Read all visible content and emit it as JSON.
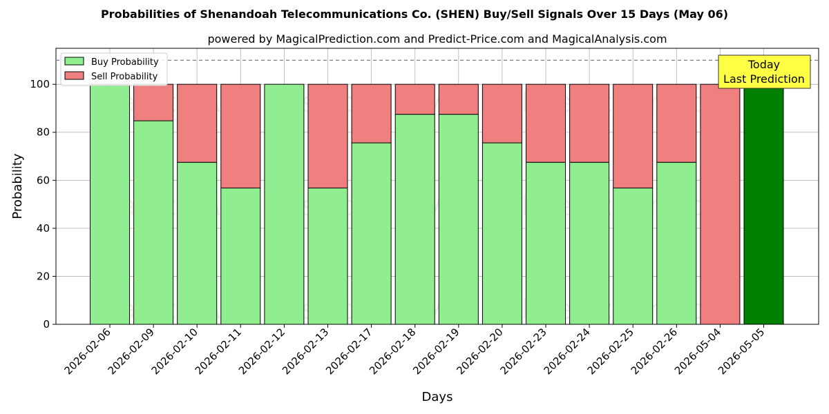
{
  "chart_data": {
    "type": "bar",
    "stacked": true,
    "title": "Probabilities of Shenandoah Telecommunications Co. (SHEN) Buy/Sell Signals Over 15 Days (May 06)",
    "subtitle": "powered by MagicalPrediction.com and Predict-Price.com and MagicalAnalysis.com",
    "xlabel": "Days",
    "ylabel": "Probability",
    "ylim": [
      0,
      115
    ],
    "yticks": [
      0,
      20,
      40,
      60,
      80,
      100
    ],
    "grid": true,
    "legend_position": "top-left",
    "reference_line": 110,
    "categories": [
      "2026-02-06",
      "2026-02-09",
      "2026-02-10",
      "2026-02-11",
      "2026-02-12",
      "2026-02-13",
      "2026-02-17",
      "2026-02-18",
      "2026-02-19",
      "2026-02-20",
      "2026-02-23",
      "2026-02-24",
      "2026-02-25",
      "2026-02-26",
      "2026-05-04",
      "2026-05-05"
    ],
    "series": [
      {
        "name": "Buy Probability",
        "color": "#90ee90",
        "values": [
          100,
          84.8,
          67.5,
          56.8,
          100,
          56.8,
          75.6,
          87.5,
          87.5,
          75.6,
          67.5,
          67.5,
          56.8,
          67.5,
          0,
          100
        ]
      },
      {
        "name": "Sell Probability",
        "color": "#f08080",
        "values": [
          0,
          15.2,
          32.5,
          43.2,
          0,
          43.2,
          24.4,
          12.5,
          12.5,
          24.4,
          32.5,
          32.5,
          43.2,
          32.5,
          100,
          0
        ]
      }
    ],
    "highlight": {
      "index": 15,
      "color": "#008000"
    },
    "annotation": {
      "text_line1": "Today",
      "text_line2": "Last Prediction",
      "background": "#ffff44"
    },
    "watermarks": [
      "MagicalAnalysis.com",
      "MagicalPrediction.com"
    ]
  }
}
